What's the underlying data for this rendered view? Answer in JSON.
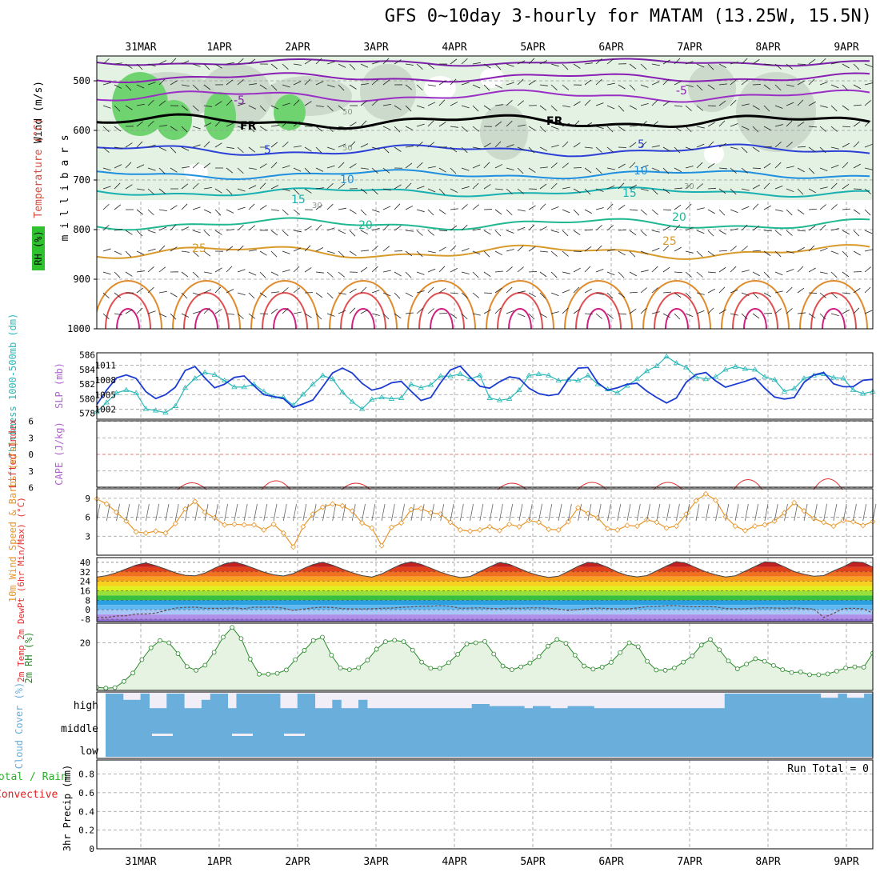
{
  "title": "GFS 0~10day 3-hourly for MATAM (13.25W, 15.5N)",
  "date_labels": [
    "31MAR",
    "1APR",
    "2APR",
    "3APR",
    "4APR",
    "5APR",
    "6APR",
    "7APR",
    "8APR",
    "9APR"
  ],
  "run_total_label": "Run Total = 0",
  "colors": {
    "temp_blue": "#2c3fd6",
    "temp_purple": "#8a1fb5",
    "thickness": "#2ab8b8",
    "slp": "#1a3bd1",
    "lifted_index": "#e03030",
    "wind_speed": "#e8962a",
    "rh": "#2a8a2a",
    "cloud": "#6aaedb",
    "precip_total": "#2ab02a",
    "precip_conv": "#e02020"
  },
  "chart_data": [
    {
      "type": "heatmap",
      "panel": "upper-air",
      "ylabel_parts": [
        "Wind (m/s)",
        "Temperature (°C)",
        "RH (%)",
        "m i l l i b a r s"
      ],
      "y_ticks": [
        500,
        600,
        700,
        800,
        900,
        1000
      ],
      "ylim": [
        1000,
        450
      ],
      "isotherm_labels": [
        "-5",
        "FR",
        "5",
        "10",
        "15",
        "20",
        "25"
      ],
      "rh_labels": [
        "50",
        "30"
      ],
      "series": [
        {
          "name": "-5",
          "values": [
            -5,
            -5,
            -5,
            -5,
            -5,
            -5,
            -5,
            -5,
            -5,
            -5
          ]
        }
      ]
    },
    {
      "type": "line",
      "panel": "thickness-slp",
      "ylabel_left": "Thickness 1000-500mb (dm)",
      "ylabel_right": "SLP (mb)",
      "thickness_ticks": [
        578,
        580,
        582,
        584,
        586
      ],
      "slp_ticks": [
        1002,
        1005,
        1008,
        1011
      ],
      "thickness_values": [
        578.2,
        579.5,
        580.8,
        581.2,
        580.8,
        578.6,
        578.4,
        578.1,
        579.0,
        581.5,
        582.8,
        583.6,
        583.3,
        582.5,
        581.6,
        581.6,
        582.0,
        581.0,
        580.3,
        580.2,
        579.1,
        580.6,
        582.0,
        583.2,
        582.7,
        580.9,
        579.6,
        578.6,
        579.9,
        580.2,
        580.0,
        580.1,
        582.0,
        581.5,
        581.9,
        583.1,
        583.1,
        583.4,
        582.7,
        583.2,
        580.1,
        579.8,
        580.0,
        581.2,
        583.2,
        583.4,
        583.2,
        582.5,
        582.6,
        582.5,
        583.2,
        582.0,
        581.3,
        580.8,
        581.8,
        582.7,
        583.8,
        584.5,
        585.8,
        584.9,
        584.3,
        583.0,
        582.7,
        583.0,
        584.0,
        584.4,
        584.1,
        584.0,
        583.0,
        582.6,
        581.0,
        581.4,
        582.8,
        583.2,
        583.4,
        582.9,
        582.8,
        581.2,
        580.7,
        581.0
      ],
      "slp_values": [
        1003.0,
        1005.9,
        1008.4,
        1009.0,
        1008.3,
        1005.6,
        1004.2,
        1005.0,
        1006.5,
        1009.9,
        1010.7,
        1008.4,
        1006.4,
        1007.1,
        1008.5,
        1008.8,
        1006.8,
        1005.0,
        1004.6,
        1004.2,
        1002.4,
        1003.1,
        1003.9,
        1006.6,
        1009.4,
        1010.4,
        1009.4,
        1007.3,
        1005.9,
        1006.4,
        1007.4,
        1007.7,
        1005.7,
        1003.8,
        1004.4,
        1007.4,
        1010.0,
        1010.8,
        1008.6,
        1006.7,
        1006.3,
        1007.6,
        1008.6,
        1008.3,
        1006.3,
        1005.2,
        1004.8,
        1005.1,
        1008.1,
        1010.4,
        1010.5,
        1007.4,
        1005.9,
        1006.4,
        1007.1,
        1007.3,
        1005.7,
        1004.4,
        1003.3,
        1004.3,
        1007.5,
        1009.1,
        1009.5,
        1007.8,
        1006.5,
        1007.1,
        1007.7,
        1008.4,
        1006.3,
        1004.5,
        1004.1,
        1004.4,
        1007.5,
        1009.0,
        1009.5,
        1007.2,
        1006.6,
        1006.6,
        1007.9,
        1008.1
      ]
    },
    {
      "type": "line",
      "panel": "lifted-index-cape",
      "ylabel_left": "Lifted Index",
      "ylabel_right": "CAPE (J/kg)",
      "y_ticks": [
        -6,
        -3,
        0,
        3,
        6
      ],
      "ylim": [
        -6,
        6
      ]
    },
    {
      "type": "line",
      "panel": "wind10m",
      "ylabel": "10m Wind Speed & Barbs (m/s)",
      "y_ticks": [
        3,
        6,
        9
      ],
      "ylim": [
        0,
        10.5
      ],
      "values": [
        8.9,
        8.1,
        6.8,
        5.4,
        3.7,
        3.5,
        3.8,
        3.5,
        5.0,
        7.3,
        8.5,
        6.8,
        5.9,
        4.8,
        4.9,
        4.8,
        4.8,
        4.0,
        4.9,
        3.5,
        1.3,
        4.5,
        6.5,
        7.6,
        8.1,
        7.8,
        7.0,
        5.1,
        4.3,
        1.5,
        4.4,
        5.1,
        7.2,
        7.4,
        6.7,
        6.5,
        5.2,
        4.0,
        3.8,
        4.0,
        4.5,
        3.9,
        4.9,
        4.5,
        5.5,
        5.2,
        4.1,
        4.0,
        5.3,
        7.5,
        6.6,
        5.9,
        4.2,
        4.0,
        4.7,
        4.6,
        5.6,
        5.2,
        4.3,
        4.6,
        6.5,
        8.6,
        9.7,
        8.7,
        6.1,
        4.6,
        3.9,
        4.6,
        4.8,
        5.4,
        6.7,
        8.3,
        7.0,
        5.8,
        5.2,
        4.6,
        5.5,
        5.3,
        4.7,
        5.3
      ]
    },
    {
      "type": "area",
      "panel": "temp-dewpt",
      "ylabel": "2m Temp 2m DewPt (6hr Min/Max) (°C)",
      "y_ticks": [
        -8,
        0,
        8,
        16,
        24,
        32,
        40
      ],
      "ylim": [
        -10,
        44
      ],
      "temp_values": [
        27.5,
        28.8,
        31.3,
        34.5,
        37.7,
        39.5,
        37.2,
        34.3,
        31.2,
        29.1,
        28.6,
        31.0,
        35.1,
        38.7,
        40.3,
        37.9,
        34.9,
        31.8,
        29.5,
        28.5,
        30.5,
        34.6,
        38.1,
        40.1,
        37.6,
        34.3,
        31.3,
        28.8,
        27.5,
        30.2,
        34.5,
        38.4,
        40.4,
        38.4,
        35.1,
        31.7,
        29.0,
        27.2,
        28.1,
        32.2,
        36.2,
        39.8,
        38.4,
        34.8,
        31.4,
        28.9,
        27.3,
        28.3,
        32.4,
        36.7,
        40.0,
        39.0,
        35.8,
        31.8,
        29.0,
        27.7,
        28.8,
        32.9,
        36.9,
        40.6,
        39.2,
        35.5,
        32.0,
        29.5,
        27.6,
        28.6,
        32.6,
        36.5,
        40.4,
        39.9,
        36.2,
        32.2,
        29.9,
        28.3,
        28.8,
        32.8,
        36.3,
        40.5,
        39.9,
        36.0
      ],
      "dewpt_values": [
        -6.4,
        -6.5,
        -5.3,
        -5.0,
        -3.6,
        -3.6,
        -2.8,
        -0.7,
        1.4,
        2.0,
        2.2,
        1.3,
        1.2,
        1.3,
        1.6,
        0.9,
        2.2,
        2.0,
        2.2,
        1.4,
        -0.7,
        0.5,
        1.6,
        2.2,
        1.9,
        1.0,
        0.7,
        0.7,
        0.9,
        1.3,
        1.4,
        2.1,
        2.4,
        2.9,
        3.0,
        3.4,
        2.8,
        1.3,
        1.4,
        1.6,
        1.2,
        0.9,
        1.5,
        1.2,
        1.6,
        1.6,
        1.3,
        0.6,
        -0.6,
        0.2,
        1.0,
        1.5,
        1.1,
        0.7,
        0.8,
        1.5,
        2.7,
        2.7,
        3.4,
        3.4,
        2.7,
        2.5,
        2.7,
        2.4,
        1.1,
        0.9,
        0.9,
        1.4,
        1.6,
        1.5,
        1.2,
        1.6,
        1.1,
        0.6,
        -6.5,
        -3.1,
        1.1,
        1.3,
        0.8,
        -2.7
      ]
    },
    {
      "type": "area",
      "panel": "rh2m",
      "ylabel": "2m RH (%)",
      "y_ticks": [
        20
      ],
      "ylim": [
        3,
        27
      ],
      "values": [
        4.1,
        3.8,
        4.0,
        6.2,
        9.2,
        14.0,
        18.2,
        20.8,
        20.0,
        16.1,
        11.5,
        10.2,
        12.0,
        16.6,
        22.0,
        25.5,
        21.5,
        14.2,
        8.8,
        8.8,
        9.1,
        10.3,
        14.0,
        17.3,
        20.8,
        22.0,
        15.6,
        11.0,
        10.4,
        11.1,
        13.8,
        17.7,
        20.4,
        20.9,
        20.4,
        17.4,
        13.1,
        10.9,
        10.9,
        12.9,
        15.9,
        19.6,
        20.0,
        20.5,
        16.0,
        11.7,
        10.4,
        11.4,
        12.8,
        15.0,
        18.8,
        21.2,
        19.8,
        15.6,
        11.7,
        10.6,
        11.3,
        13.0,
        16.5,
        20.0,
        18.6,
        13.4,
        10.3,
        10.2,
        11.0,
        13.1,
        15.3,
        19.2,
        21.2,
        17.5,
        13.5,
        10.7,
        12.4,
        14.3,
        13.4,
        11.9,
        10.4,
        9.4,
        9.6,
        8.6,
        8.6,
        8.9,
        9.9,
        11.0,
        11.4,
        11.3,
        16.3
      ]
    },
    {
      "type": "bar",
      "panel": "cloud-cover",
      "ylabel": "Cloud Cover (%)",
      "level_labels": [
        "high",
        "middle",
        "low"
      ],
      "high_values": [
        100,
        100,
        70,
        70,
        100,
        30,
        30,
        100,
        100,
        30,
        30,
        70,
        100,
        100,
        30,
        100,
        100,
        100,
        100,
        100,
        30,
        30,
        100,
        100,
        30,
        30,
        70,
        30,
        30,
        70,
        30,
        30,
        30,
        30,
        30,
        30,
        30,
        30,
        30,
        30,
        30,
        30,
        50,
        50,
        40,
        40,
        40,
        40,
        30,
        40,
        40,
        30,
        30,
        40,
        40,
        40,
        30,
        30,
        30,
        30,
        30,
        30,
        30,
        30,
        30,
        30,
        30,
        30,
        30,
        30,
        30,
        100,
        100,
        100,
        100,
        100,
        100,
        100,
        100,
        100,
        100,
        100,
        80,
        80,
        100,
        80,
        80,
        100
      ],
      "middle_values": [
        100,
        100,
        100,
        100,
        100,
        100,
        100,
        100,
        100,
        100,
        100,
        100,
        100,
        100,
        100,
        100,
        100,
        100,
        100,
        100,
        100,
        100,
        100,
        100,
        100,
        100,
        100,
        100,
        100,
        100,
        100,
        100,
        100,
        100,
        100,
        100,
        100,
        100,
        100,
        100,
        100,
        100,
        100,
        100,
        100,
        100,
        100,
        100,
        100,
        100,
        100,
        100,
        100,
        100,
        100,
        100,
        100,
        100,
        100,
        100,
        100,
        100,
        100,
        100,
        100,
        100,
        100,
        100,
        100,
        100,
        100,
        100,
        100,
        100,
        100,
        100,
        100,
        100,
        100,
        100,
        100,
        100,
        100,
        100,
        100,
        100,
        100,
        100
      ],
      "low_values": [
        100,
        100,
        100,
        100,
        100,
        100,
        100,
        100,
        100,
        100,
        100,
        100,
        100,
        100,
        100,
        100,
        100,
        100,
        100,
        100,
        100,
        100,
        100,
        100,
        100,
        100,
        100,
        100,
        100,
        100,
        100,
        100,
        100,
        100,
        100,
        100,
        100,
        100,
        100,
        100,
        100,
        100,
        100,
        100,
        100,
        100,
        100,
        100,
        100,
        100,
        100,
        100,
        100,
        100,
        100,
        100,
        100,
        100,
        100,
        100,
        100,
        100,
        100,
        100,
        100,
        100,
        100,
        100,
        100,
        100,
        100,
        100,
        100,
        100,
        100,
        100,
        100,
        100,
        100,
        100,
        100,
        100,
        100,
        100,
        100,
        100,
        100,
        100
      ]
    },
    {
      "type": "bar",
      "panel": "precip",
      "ylabel": "Total / Rain Convective 3hr Precip (mm)",
      "ylabel_parts": [
        "Total / Rain",
        "Convective",
        "3hr Precip (mm)"
      ],
      "y_ticks": [
        0,
        0.2,
        0.4,
        0.6,
        0.8
      ],
      "ylim": [
        0,
        0.95
      ],
      "values": []
    }
  ]
}
